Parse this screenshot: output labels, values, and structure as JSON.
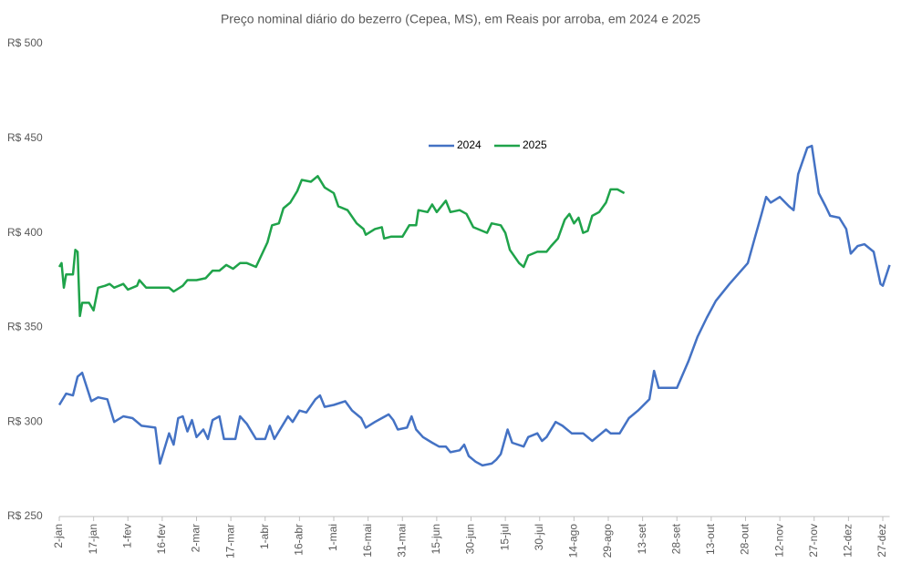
{
  "chart_data": {
    "type": "line",
    "title": "Preço nominal diário do bezerro (Cepea, MS), em Reais por arroba, em 2024 e 2025",
    "xlim": [
      0,
      363
    ],
    "xticks": [
      {
        "value": 0,
        "label": "2-jan"
      },
      {
        "value": 15,
        "label": "17-jan"
      },
      {
        "value": 30,
        "label": "1-fev"
      },
      {
        "value": 45,
        "label": "16-fev"
      },
      {
        "value": 60,
        "label": "2-mar"
      },
      {
        "value": 75,
        "label": "17-mar"
      },
      {
        "value": 90,
        "label": "1-abr"
      },
      {
        "value": 105,
        "label": "16-abr"
      },
      {
        "value": 120,
        "label": "1-mai"
      },
      {
        "value": 135,
        "label": "16-mai"
      },
      {
        "value": 150,
        "label": "31-mai"
      },
      {
        "value": 165,
        "label": "15-jun"
      },
      {
        "value": 180,
        "label": "30-jun"
      },
      {
        "value": 195,
        "label": "15-jul"
      },
      {
        "value": 210,
        "label": "30-jul"
      },
      {
        "value": 225,
        "label": "14-ago"
      },
      {
        "value": 240,
        "label": "29-ago"
      },
      {
        "value": 255,
        "label": "13-set"
      },
      {
        "value": 270,
        "label": "28-set"
      },
      {
        "value": 285,
        "label": "13-out"
      },
      {
        "value": 300,
        "label": "28-out"
      },
      {
        "value": 315,
        "label": "12-nov"
      },
      {
        "value": 330,
        "label": "27-nov"
      },
      {
        "value": 345,
        "label": "12-dez"
      },
      {
        "value": 360,
        "label": "27-dez"
      }
    ],
    "ylim": [
      250,
      500
    ],
    "yticks": [
      {
        "value": 250,
        "label": "R$ 250"
      },
      {
        "value": 300,
        "label": "R$ 300"
      },
      {
        "value": 350,
        "label": "R$ 350"
      },
      {
        "value": 400,
        "label": "R$ 400"
      },
      {
        "value": 450,
        "label": "R$ 450"
      },
      {
        "value": 500,
        "label": "R$ 500"
      }
    ],
    "grid": false,
    "legend": "top",
    "series": [
      {
        "name": "2024",
        "color": "#4472c4",
        "x": [
          0,
          3,
          6,
          8,
          10,
          14,
          17,
          21,
          24,
          28,
          32,
          36,
          42,
          44,
          48,
          50,
          52,
          54,
          56,
          58,
          60,
          63,
          65,
          67,
          70,
          72,
          77,
          79,
          82,
          86,
          90,
          92,
          94,
          98,
          100,
          102,
          105,
          108,
          112,
          114,
          116,
          120,
          125,
          128,
          132,
          134,
          138,
          141,
          144,
          146,
          148,
          152,
          154,
          156,
          159,
          163,
          166,
          169,
          171,
          175,
          177,
          179,
          182,
          185,
          189,
          191,
          193,
          196,
          198,
          203,
          205,
          209,
          211,
          213,
          217,
          220,
          224,
          229,
          233,
          237,
          239,
          241,
          245,
          249,
          253,
          258,
          260,
          262,
          270,
          275,
          279,
          283,
          287,
          293,
          301,
          304,
          307,
          309,
          311,
          315,
          319,
          321,
          323,
          327,
          329,
          332,
          335,
          337,
          341,
          344,
          346,
          349,
          352,
          356,
          359,
          360,
          363
        ],
        "values": [
          309,
          315,
          314,
          324,
          326,
          311,
          313,
          312,
          300,
          303,
          302,
          298,
          297,
          278,
          294,
          288,
          302,
          303,
          295,
          301,
          292,
          296,
          291,
          301,
          303,
          291,
          291,
          303,
          299,
          291,
          291,
          298,
          291,
          299,
          303,
          300,
          306,
          305,
          312,
          314,
          308,
          309,
          311,
          306,
          302,
          297,
          300,
          302,
          304,
          301,
          296,
          297,
          303,
          296,
          292,
          289,
          287,
          287,
          284,
          285,
          288,
          282,
          279,
          277,
          278,
          280,
          283,
          296,
          289,
          287,
          292,
          294,
          290,
          292,
          300,
          298,
          294,
          294,
          290,
          294,
          296,
          294,
          294,
          302,
          306,
          312,
          327,
          318,
          318,
          332,
          345,
          355,
          364,
          373,
          384,
          397,
          410,
          419,
          416,
          419,
          414,
          412,
          431,
          445,
          446,
          421,
          414,
          409,
          408,
          402,
          389,
          393,
          394,
          390,
          373,
          372,
          383
        ]
      },
      {
        "name": "2025",
        "color": "#1fa34a",
        "x": [
          0,
          1,
          2,
          3,
          6,
          7,
          8,
          9,
          10,
          13,
          15,
          17,
          20,
          22,
          24,
          28,
          30,
          34,
          35,
          38,
          44,
          48,
          50,
          54,
          56,
          60,
          64,
          67,
          70,
          73,
          76,
          79,
          82,
          86,
          91,
          93,
          96,
          98,
          101,
          104,
          106,
          110,
          113,
          116,
          120,
          122,
          126,
          130,
          133,
          134,
          138,
          141,
          142,
          145,
          150,
          153,
          156,
          157,
          161,
          163,
          165,
          169,
          171,
          175,
          178,
          181,
          185,
          187,
          189,
          193,
          195,
          197,
          201,
          203,
          205,
          209,
          213,
          215,
          218,
          221,
          223,
          225,
          227,
          229,
          231,
          233,
          236,
          239,
          241,
          244,
          247
        ],
        "values": [
          382,
          384,
          371,
          378,
          378,
          391,
          390,
          356,
          363,
          363,
          359,
          371,
          372,
          373,
          371,
          373,
          370,
          372,
          375,
          371,
          371,
          371,
          369,
          372,
          375,
          375,
          376,
          380,
          380,
          383,
          381,
          384,
          384,
          382,
          395,
          404,
          405,
          413,
          416,
          422,
          428,
          427,
          430,
          424,
          421,
          414,
          412,
          405,
          402,
          399,
          402,
          403,
          397,
          398,
          398,
          404,
          404,
          412,
          411,
          415,
          411,
          417,
          411,
          412,
          410,
          403,
          401,
          400,
          405,
          404,
          400,
          391,
          384,
          382,
          388,
          390,
          390,
          393,
          397,
          407,
          410,
          405,
          408,
          400,
          401,
          409,
          411,
          416,
          423,
          423,
          421
        ]
      }
    ]
  }
}
